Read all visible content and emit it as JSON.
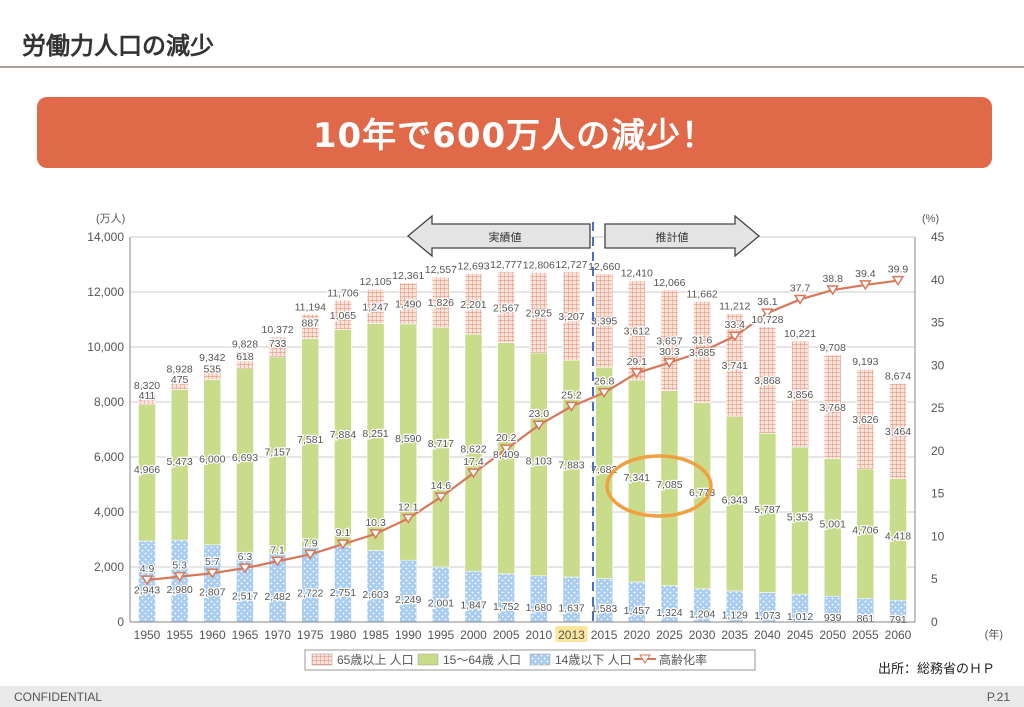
{
  "header": {
    "title": "労働力人口の減少"
  },
  "banner": {
    "text": "10年で600万人の減少！"
  },
  "footer": {
    "confidential": "CONFIDENTIAL",
    "page": "P.21",
    "source": "出所：総務省のＨＰ"
  },
  "colors": {
    "banner": "#e0694a",
    "elderly": "#e8a08a",
    "working": "#c8dc8c",
    "children": "#a8cdef",
    "rate_line": "#d9775a",
    "highlight_ellipse": "#f0a040",
    "divider": "#4a6fc4"
  },
  "chart_data": {
    "type": "bar",
    "stacked": true,
    "left_axis": {
      "unit": "(万人)",
      "ylim": [
        0,
        14000
      ],
      "ticks": [
        "0",
        "2,000",
        "4,000",
        "6,000",
        "8,000",
        "10,000",
        "12,000",
        "14,000"
      ]
    },
    "right_axis": {
      "unit": "(%)",
      "ylim": [
        0,
        45
      ],
      "ticks": [
        "0",
        "5",
        "10",
        "15",
        "20",
        "25",
        "30",
        "35",
        "40",
        "45"
      ]
    },
    "x_unit": "(年)",
    "categories": [
      "1950",
      "1955",
      "1960",
      "1965",
      "1970",
      "1975",
      "1980",
      "1985",
      "1990",
      "1995",
      "2000",
      "2005",
      "2010",
      "2013",
      "2015",
      "2020",
      "2025",
      "2030",
      "2035",
      "2040",
      "2045",
      "2050",
      "2055",
      "2060"
    ],
    "highlight_category": "2013",
    "totals": [
      "8,320",
      "8,928",
      "9,342",
      "9,828",
      "10,372",
      "11,194",
      "11,706",
      "12,105",
      "12,361",
      "12,557",
      "12,693",
      "12,777",
      "12,806",
      "12,727",
      "12,660",
      "12,410",
      "12,066",
      "11,662",
      "11,212",
      "10,728",
      "10,221",
      "9,708",
      "9,193",
      "8,674"
    ],
    "series": [
      {
        "name": "14歳以下 人口",
        "values": [
          2943,
          2980,
          2807,
          2517,
          2482,
          2722,
          2751,
          2603,
          2249,
          2001,
          1847,
          1752,
          1680,
          1637,
          1583,
          1457,
          1324,
          1204,
          1129,
          1073,
          1012,
          939,
          861,
          791
        ],
        "labels": [
          "2,943",
          "2,980",
          "2,807",
          "2,517",
          "2,482",
          "2,722",
          "2,751",
          "2,603",
          "2,249",
          "2,001",
          "1,847",
          "1,752",
          "1,680",
          "1,637",
          "1,583",
          "1,457",
          "1,324",
          "1,204",
          "1,129",
          "1,073",
          "1,012",
          "939",
          "861",
          "791"
        ]
      },
      {
        "name": "15～64歳 人口",
        "values": [
          4966,
          5473,
          6000,
          6693,
          7157,
          7581,
          7884,
          8251,
          8590,
          8717,
          8622,
          8409,
          8103,
          7883,
          7682,
          7341,
          7085,
          6773,
          6343,
          5787,
          5353,
          5001,
          4706,
          4418
        ],
        "labels": [
          "4,966",
          "5,473",
          "6,000",
          "6,693",
          "7,157",
          "7,581",
          "7,884",
          "8,251",
          "8,590",
          "8,717",
          "8,622",
          "8,409",
          "8,103",
          "7,883",
          "7,682",
          "7,341",
          "7,085",
          "6,773",
          "6,343",
          "5,787",
          "5,353",
          "5,001",
          "4,706",
          "4,418"
        ]
      },
      {
        "name": "65歳以上 人口",
        "values": [
          411,
          475,
          535,
          618,
          733,
          887,
          1065,
          1247,
          1490,
          1826,
          2201,
          2567,
          2925,
          3207,
          3395,
          3612,
          3657,
          3685,
          3741,
          3868,
          3856,
          3768,
          3626,
          3464
        ],
        "labels": [
          "411",
          "475",
          "535",
          "618",
          "733",
          "887",
          "1,065",
          "1,247",
          "1,490",
          "1,826",
          "2,201",
          "2,567",
          "2,925",
          "3,207",
          "3,395",
          "3,612",
          "3,657",
          "3,685",
          "3,741",
          "3,868",
          "3,856",
          "3,768",
          "3,626",
          "3,464"
        ]
      },
      {
        "name": "高齢化率",
        "type": "line",
        "axis": "right",
        "values": [
          4.9,
          5.3,
          5.7,
          6.3,
          7.1,
          7.9,
          9.1,
          10.3,
          12.1,
          14.6,
          17.4,
          20.2,
          23.0,
          25.2,
          26.8,
          29.1,
          30.3,
          31.6,
          33.4,
          36.1,
          37.7,
          38.8,
          39.4,
          39.9
        ],
        "labels": [
          "4.9",
          "5.3",
          "5.7",
          "6.3",
          "7.1",
          "7.9",
          "9.1",
          "10.3",
          "12.1",
          "14.6",
          "17.4",
          "20.2",
          "23.0",
          "25.2",
          "26.8",
          "29.1",
          "30.3",
          "31.6",
          "33.4",
          "36.1",
          "37.7",
          "38.8",
          "39.4",
          "39.9"
        ]
      }
    ],
    "legend": {
      "placement": "bottom",
      "items": [
        "65歳以上 人口",
        "15～64歳 人口",
        "14歳以下 人口",
        "高齢化率"
      ]
    },
    "annotations": {
      "actual": "実績値",
      "projected": "推計値"
    }
  }
}
